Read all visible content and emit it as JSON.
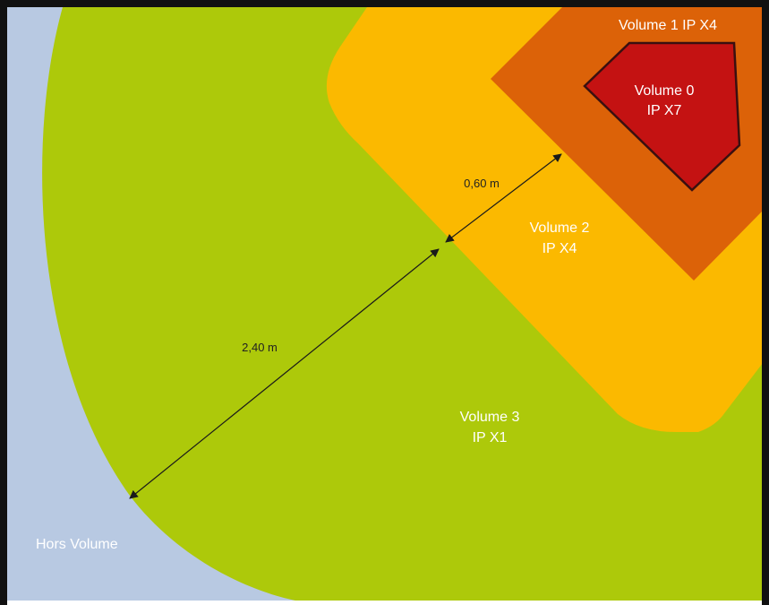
{
  "zones": {
    "volume0": {
      "name": "Volume 0",
      "rating": "IP X7",
      "color": "#c41212"
    },
    "volume1": {
      "label": "Volume 1 IP X4",
      "color": "#dc6208"
    },
    "volume2": {
      "name": "Volume 2",
      "rating": "IP X4",
      "color": "#fbb900"
    },
    "volume3": {
      "name": "Volume 3",
      "rating": "IP X1",
      "color": "#adc90a"
    },
    "outside": {
      "label": "Hors Volume",
      "color": "#b8c9e2"
    }
  },
  "dimensions": {
    "inner": "0,60 m",
    "outer": "2,40 m"
  },
  "colors": {
    "frame": "#111111",
    "arrow": "#1a1a1a",
    "outline": "#3a1010"
  }
}
